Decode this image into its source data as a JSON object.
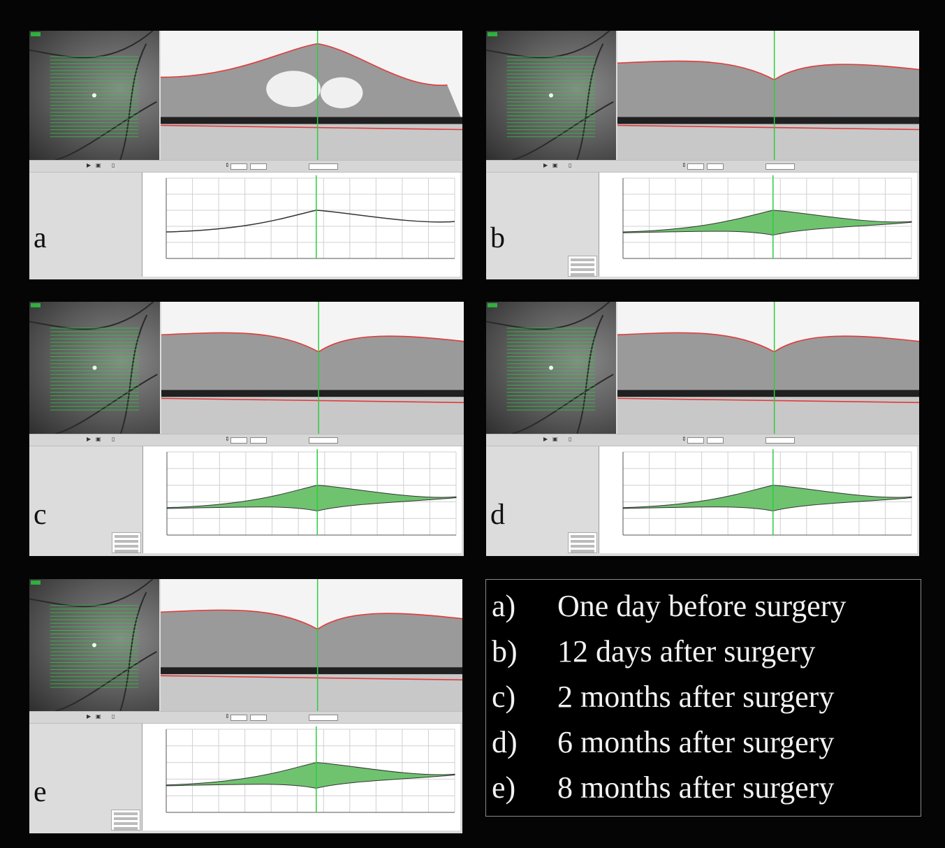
{
  "panels": [
    {
      "id": "a",
      "label": "a",
      "variant": "pre"
    },
    {
      "id": "b",
      "label": "b",
      "variant": "post"
    },
    {
      "id": "c",
      "label": "c",
      "variant": "post"
    },
    {
      "id": "d",
      "label": "d",
      "variant": "post"
    },
    {
      "id": "e",
      "label": "e",
      "variant": "post"
    }
  ],
  "legend": [
    {
      "key": "a)",
      "text": "One day before surgery"
    },
    {
      "key": "b)",
      "text": "12 days after surgery"
    },
    {
      "key": "c)",
      "text": "2 months after surgery"
    },
    {
      "key": "d)",
      "text": "6 months after surgery"
    },
    {
      "key": "e)",
      "text": "8 months after surgery"
    }
  ],
  "colors": {
    "background": "#050505",
    "scan_line": "#2ecc40",
    "retina_boundary": "#e23a3a",
    "thickness_fill": "#6fc36f",
    "thickness_line": "#333333",
    "legend_text": "#f2f2f2"
  },
  "icons": [
    "play-icon",
    "save-icon",
    "print-icon",
    "arrows-icon",
    "fundus-image",
    "oct-bscan-image",
    "thickness-plot"
  ]
}
